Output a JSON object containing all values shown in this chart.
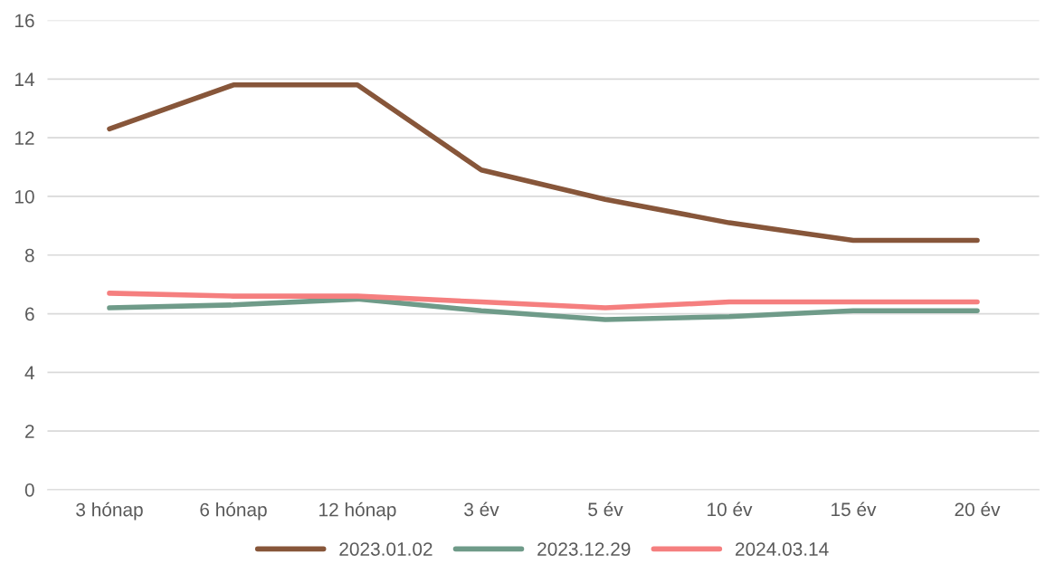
{
  "chart_data": {
    "type": "line",
    "categories": [
      "3 hónap",
      "6 hónap",
      "12 hónap",
      "3 év",
      "5 év",
      "10 év",
      "15 év",
      "20 év"
    ],
    "series": [
      {
        "name": "2023.01.02",
        "color": "#87563a",
        "values": [
          12.3,
          13.8,
          13.8,
          10.9,
          9.9,
          9.1,
          8.5,
          8.5
        ]
      },
      {
        "name": "2023.12.29",
        "color": "#6f9b89",
        "values": [
          6.2,
          6.3,
          6.5,
          6.1,
          5.8,
          5.9,
          6.1,
          6.1
        ]
      },
      {
        "name": "2024.03.14",
        "color": "#f57f7f",
        "values": [
          6.7,
          6.6,
          6.6,
          6.4,
          6.2,
          6.4,
          6.4,
          6.4
        ]
      }
    ],
    "ylim": [
      0,
      16
    ],
    "yticks": [
      0,
      2,
      4,
      6,
      8,
      10,
      12,
      14,
      16
    ],
    "grid": "y",
    "legend": "bottom",
    "marker": "none",
    "line_style": "solid"
  }
}
